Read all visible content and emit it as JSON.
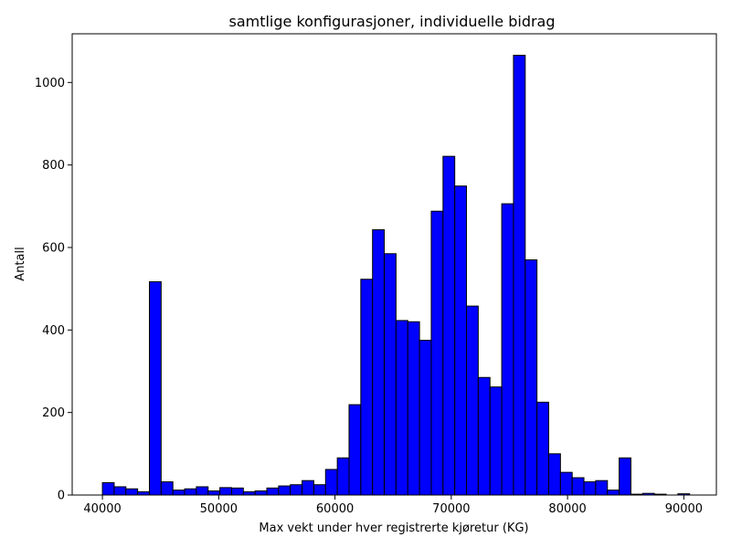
{
  "chart_data": {
    "type": "bar",
    "title": "samtlige konfigurasjoner, individuelle bidrag",
    "xlabel": "Max vekt under hver registrerte kjøretur (KG)",
    "ylabel": "Antall",
    "xlim": [
      37400,
      92800
    ],
    "ylim": [
      0,
      1118
    ],
    "x_ticks": [
      40000,
      50000,
      60000,
      70000,
      80000,
      90000
    ],
    "x_tick_labels": [
      "40000",
      "50000",
      "60000",
      "70000",
      "80000",
      "90000"
    ],
    "y_ticks": [
      0,
      200,
      400,
      600,
      800,
      1000
    ],
    "y_tick_labels": [
      "0",
      "200",
      "400",
      "600",
      "800",
      "1000"
    ],
    "bin_start": 40000,
    "bin_width": 1010,
    "values": [
      30,
      20,
      15,
      8,
      517,
      32,
      12,
      15,
      20,
      10,
      18,
      17,
      8,
      10,
      17,
      22,
      25,
      35,
      25,
      62,
      90,
      219,
      523,
      643,
      585,
      423,
      420,
      375,
      688,
      821,
      749,
      458,
      285,
      262,
      706,
      1066,
      570,
      225,
      100,
      55,
      42,
      32,
      35,
      12,
      90,
      2,
      4,
      2,
      0,
      3
    ],
    "bar_color": "#0000ff",
    "edge_color": "#000000",
    "grid": false,
    "legend": "none"
  }
}
